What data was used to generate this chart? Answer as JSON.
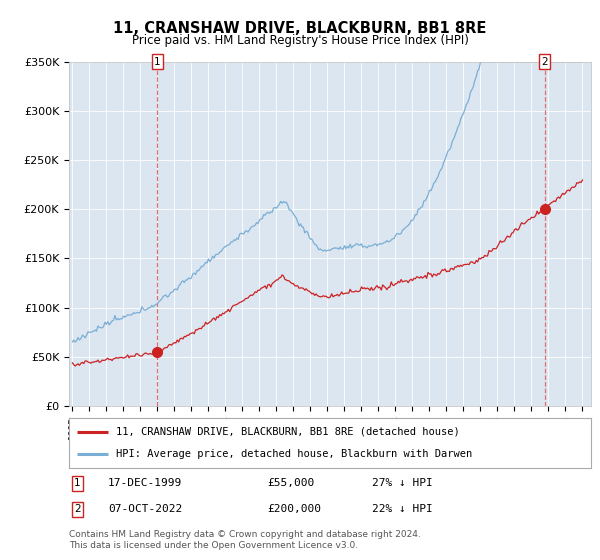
{
  "title": "11, CRANSHAW DRIVE, BLACKBURN, BB1 8RE",
  "subtitle": "Price paid vs. HM Land Registry's House Price Index (HPI)",
  "plot_bg_color": "#dce6f1",
  "ylim": [
    0,
    350000
  ],
  "yticks": [
    0,
    50000,
    100000,
    150000,
    200000,
    250000,
    300000,
    350000
  ],
  "ytick_labels": [
    "£0",
    "£50K",
    "£100K",
    "£150K",
    "£200K",
    "£250K",
    "£300K",
    "£350K"
  ],
  "hpi_color": "#7aaed4",
  "price_color": "#cc2222",
  "dashed_color": "#e07070",
  "marker1_year": 2000.0,
  "marker1_price": 55000,
  "marker2_year": 2022.77,
  "marker2_price": 200000,
  "legend_price_label": "11, CRANSHAW DRIVE, BLACKBURN, BB1 8RE (detached house)",
  "legend_hpi_label": "HPI: Average price, detached house, Blackburn with Darwen",
  "note1_date": "17-DEC-1999",
  "note1_price": "£55,000",
  "note1_hpi": "27% ↓ HPI",
  "note2_date": "07-OCT-2022",
  "note2_price": "£200,000",
  "note2_hpi": "22% ↓ HPI",
  "footer": "Contains HM Land Registry data © Crown copyright and database right 2024.\nThis data is licensed under the Open Government Licence v3.0."
}
